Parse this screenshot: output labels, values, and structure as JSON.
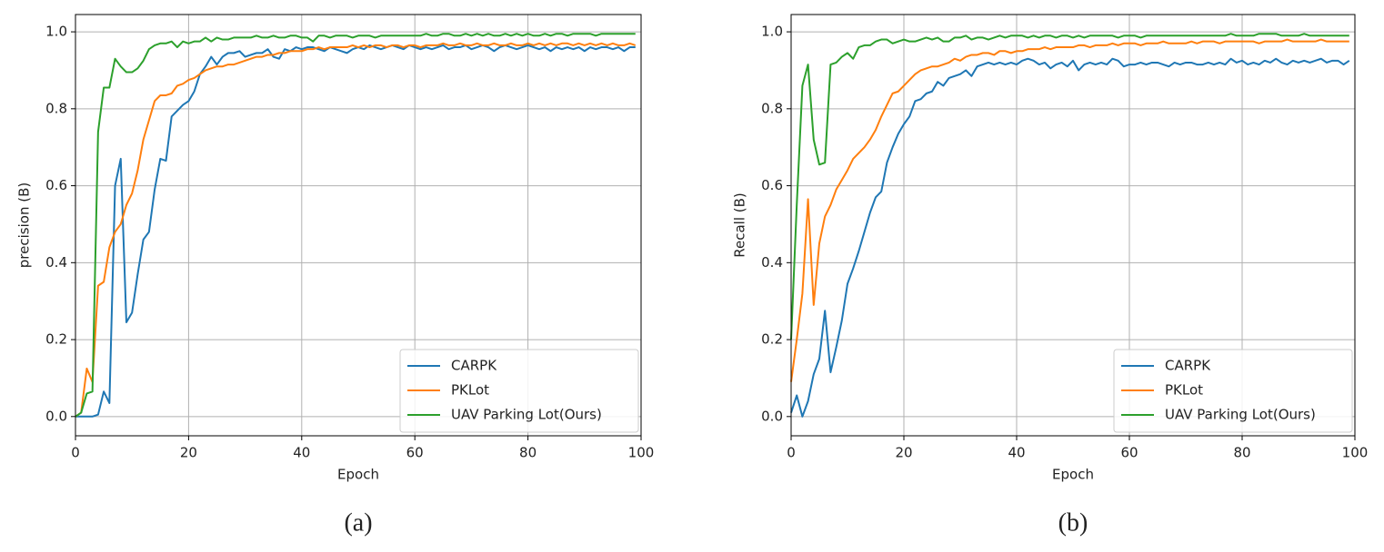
{
  "chart_data": [
    {
      "type": "line",
      "caption": "(a)",
      "x_label": "Epoch",
      "y_label": "precision (B)",
      "x": [
        0,
        1,
        2,
        3,
        4,
        5,
        6,
        7,
        8,
        9,
        10,
        11,
        12,
        13,
        14,
        15,
        16,
        17,
        18,
        19,
        20,
        21,
        22,
        23,
        24,
        25,
        26,
        27,
        28,
        29,
        30,
        31,
        32,
        33,
        34,
        35,
        36,
        37,
        38,
        39,
        40,
        41,
        42,
        43,
        44,
        45,
        46,
        47,
        48,
        49,
        50,
        51,
        52,
        53,
        54,
        55,
        56,
        57,
        58,
        59,
        60,
        61,
        62,
        63,
        64,
        65,
        66,
        67,
        68,
        69,
        70,
        71,
        72,
        73,
        74,
        75,
        76,
        77,
        78,
        79,
        80,
        81,
        82,
        83,
        84,
        85,
        86,
        87,
        88,
        89,
        90,
        91,
        92,
        93,
        94,
        95,
        96,
        97,
        98,
        99
      ],
      "xlim": [
        0,
        100
      ],
      "xticks": [
        0,
        20,
        40,
        60,
        80,
        100
      ],
      "ylim": [
        -0.05,
        1.045
      ],
      "yticks": [
        {
          "value": 0,
          "label": "0.0"
        },
        0.2,
        0.4,
        0.6,
        0.8,
        {
          "value": 1,
          "label": "1.0"
        }
      ],
      "grid": true,
      "legend": "lower right",
      "series": [
        {
          "name": "CARPK",
          "color": "#1f77b4",
          "values": [
            0,
            0,
            0,
            0,
            0.005,
            0.065,
            0.035,
            0.6,
            0.67,
            0.245,
            0.27,
            0.37,
            0.46,
            0.48,
            0.59,
            0.67,
            0.665,
            0.78,
            0.795,
            0.81,
            0.82,
            0.845,
            0.89,
            0.91,
            0.935,
            0.915,
            0.935,
            0.945,
            0.945,
            0.95,
            0.935,
            0.94,
            0.945,
            0.945,
            0.955,
            0.935,
            0.93,
            0.955,
            0.95,
            0.96,
            0.955,
            0.96,
            0.96,
            0.955,
            0.95,
            0.96,
            0.955,
            0.95,
            0.945,
            0.955,
            0.96,
            0.955,
            0.965,
            0.96,
            0.955,
            0.96,
            0.965,
            0.96,
            0.955,
            0.965,
            0.96,
            0.955,
            0.96,
            0.955,
            0.96,
            0.965,
            0.955,
            0.96,
            0.96,
            0.965,
            0.955,
            0.96,
            0.965,
            0.96,
            0.95,
            0.96,
            0.965,
            0.96,
            0.955,
            0.96,
            0.965,
            0.96,
            0.955,
            0.96,
            0.95,
            0.96,
            0.955,
            0.96,
            0.955,
            0.96,
            0.95,
            0.96,
            0.955,
            0.96,
            0.96,
            0.955,
            0.96,
            0.95,
            0.96,
            0.96
          ]
        },
        {
          "name": "PKLot",
          "color": "#ff7f0e",
          "values": [
            0,
            0.01,
            0.125,
            0.09,
            0.34,
            0.35,
            0.44,
            0.48,
            0.5,
            0.55,
            0.58,
            0.64,
            0.72,
            0.77,
            0.82,
            0.835,
            0.835,
            0.84,
            0.86,
            0.865,
            0.875,
            0.88,
            0.89,
            0.9,
            0.905,
            0.91,
            0.91,
            0.915,
            0.915,
            0.92,
            0.925,
            0.93,
            0.935,
            0.935,
            0.94,
            0.94,
            0.945,
            0.945,
            0.95,
            0.95,
            0.95,
            0.955,
            0.955,
            0.96,
            0.955,
            0.96,
            0.96,
            0.96,
            0.96,
            0.965,
            0.96,
            0.965,
            0.96,
            0.965,
            0.965,
            0.96,
            0.965,
            0.965,
            0.96,
            0.965,
            0.965,
            0.96,
            0.965,
            0.965,
            0.965,
            0.97,
            0.965,
            0.965,
            0.97,
            0.965,
            0.965,
            0.97,
            0.965,
            0.965,
            0.97,
            0.965,
            0.965,
            0.97,
            0.965,
            0.965,
            0.97,
            0.965,
            0.97,
            0.965,
            0.97,
            0.965,
            0.97,
            0.97,
            0.965,
            0.97,
            0.965,
            0.97,
            0.965,
            0.97,
            0.965,
            0.97,
            0.965,
            0.965,
            0.97,
            0.965
          ]
        },
        {
          "name": "UAV Parking Lot(Ours)",
          "color": "#2ca02c",
          "values": [
            0,
            0.01,
            0.06,
            0.065,
            0.74,
            0.855,
            0.855,
            0.93,
            0.91,
            0.895,
            0.895,
            0.905,
            0.925,
            0.955,
            0.965,
            0.97,
            0.97,
            0.975,
            0.96,
            0.975,
            0.97,
            0.975,
            0.975,
            0.985,
            0.975,
            0.985,
            0.98,
            0.98,
            0.985,
            0.985,
            0.985,
            0.985,
            0.99,
            0.985,
            0.985,
            0.99,
            0.985,
            0.985,
            0.99,
            0.99,
            0.985,
            0.985,
            0.975,
            0.99,
            0.99,
            0.985,
            0.99,
            0.99,
            0.99,
            0.985,
            0.99,
            0.99,
            0.99,
            0.985,
            0.99,
            0.99,
            0.99,
            0.99,
            0.99,
            0.99,
            0.99,
            0.99,
            0.995,
            0.99,
            0.99,
            0.995,
            0.995,
            0.99,
            0.99,
            0.995,
            0.99,
            0.995,
            0.99,
            0.995,
            0.99,
            0.99,
            0.995,
            0.99,
            0.995,
            0.99,
            0.995,
            0.99,
            0.99,
            0.995,
            0.99,
            0.995,
            0.995,
            0.99,
            0.995,
            0.995,
            0.995,
            0.995,
            0.99,
            0.995,
            0.995,
            0.995,
            0.995,
            0.995,
            0.995,
            0.995
          ]
        }
      ]
    },
    {
      "type": "line",
      "caption": "(b)",
      "x_label": "Epoch",
      "y_label": "Recall (B)",
      "x": [
        0,
        1,
        2,
        3,
        4,
        5,
        6,
        7,
        8,
        9,
        10,
        11,
        12,
        13,
        14,
        15,
        16,
        17,
        18,
        19,
        20,
        21,
        22,
        23,
        24,
        25,
        26,
        27,
        28,
        29,
        30,
        31,
        32,
        33,
        34,
        35,
        36,
        37,
        38,
        39,
        40,
        41,
        42,
        43,
        44,
        45,
        46,
        47,
        48,
        49,
        50,
        51,
        52,
        53,
        54,
        55,
        56,
        57,
        58,
        59,
        60,
        61,
        62,
        63,
        64,
        65,
        66,
        67,
        68,
        69,
        70,
        71,
        72,
        73,
        74,
        75,
        76,
        77,
        78,
        79,
        80,
        81,
        82,
        83,
        84,
        85,
        86,
        87,
        88,
        89,
        90,
        91,
        92,
        93,
        94,
        95,
        96,
        97,
        98,
        99
      ],
      "xlim": [
        0,
        100
      ],
      "xticks": [
        0,
        20,
        40,
        60,
        80,
        100
      ],
      "ylim": [
        -0.05,
        1.045
      ],
      "yticks": [
        {
          "value": 0,
          "label": "0.0"
        },
        0.2,
        0.4,
        0.6,
        0.8,
        {
          "value": 1,
          "label": "1.0"
        }
      ],
      "grid": true,
      "legend": "lower right",
      "series": [
        {
          "name": "CARPK",
          "color": "#1f77b4",
          "values": [
            0.01,
            0.055,
            0,
            0.04,
            0.11,
            0.15,
            0.275,
            0.115,
            0.18,
            0.25,
            0.345,
            0.385,
            0.43,
            0.48,
            0.53,
            0.57,
            0.585,
            0.66,
            0.7,
            0.735,
            0.76,
            0.78,
            0.82,
            0.825,
            0.84,
            0.845,
            0.87,
            0.86,
            0.88,
            0.885,
            0.89,
            0.9,
            0.885,
            0.91,
            0.915,
            0.92,
            0.915,
            0.92,
            0.915,
            0.92,
            0.915,
            0.925,
            0.93,
            0.925,
            0.915,
            0.92,
            0.905,
            0.915,
            0.92,
            0.91,
            0.925,
            0.9,
            0.915,
            0.92,
            0.915,
            0.92,
            0.915,
            0.93,
            0.925,
            0.91,
            0.915,
            0.915,
            0.92,
            0.915,
            0.92,
            0.92,
            0.915,
            0.91,
            0.92,
            0.915,
            0.92,
            0.92,
            0.915,
            0.915,
            0.92,
            0.915,
            0.92,
            0.915,
            0.93,
            0.92,
            0.925,
            0.915,
            0.92,
            0.915,
            0.925,
            0.92,
            0.93,
            0.92,
            0.915,
            0.925,
            0.92,
            0.925,
            0.92,
            0.925,
            0.93,
            0.92,
            0.925,
            0.925,
            0.915,
            0.925
          ]
        },
        {
          "name": "PKLot",
          "color": "#ff7f0e",
          "values": [
            0.09,
            0.2,
            0.32,
            0.565,
            0.29,
            0.45,
            0.52,
            0.55,
            0.59,
            0.615,
            0.64,
            0.67,
            0.685,
            0.7,
            0.72,
            0.745,
            0.78,
            0.81,
            0.84,
            0.845,
            0.86,
            0.875,
            0.89,
            0.9,
            0.905,
            0.91,
            0.91,
            0.915,
            0.92,
            0.93,
            0.925,
            0.935,
            0.94,
            0.94,
            0.945,
            0.945,
            0.94,
            0.95,
            0.95,
            0.945,
            0.95,
            0.95,
            0.955,
            0.955,
            0.955,
            0.96,
            0.955,
            0.96,
            0.96,
            0.96,
            0.96,
            0.965,
            0.965,
            0.96,
            0.965,
            0.965,
            0.965,
            0.97,
            0.965,
            0.97,
            0.97,
            0.97,
            0.965,
            0.97,
            0.97,
            0.97,
            0.975,
            0.97,
            0.97,
            0.97,
            0.97,
            0.975,
            0.97,
            0.975,
            0.975,
            0.975,
            0.97,
            0.975,
            0.975,
            0.975,
            0.975,
            0.975,
            0.975,
            0.97,
            0.975,
            0.975,
            0.975,
            0.975,
            0.98,
            0.975,
            0.975,
            0.975,
            0.975,
            0.975,
            0.98,
            0.975,
            0.975,
            0.975,
            0.975,
            0.975
          ]
        },
        {
          "name": "UAV Parking Lot(Ours)",
          "color": "#2ca02c",
          "values": [
            0.2,
            0.55,
            0.86,
            0.915,
            0.72,
            0.655,
            0.66,
            0.915,
            0.92,
            0.935,
            0.945,
            0.93,
            0.96,
            0.965,
            0.965,
            0.975,
            0.98,
            0.98,
            0.97,
            0.975,
            0.98,
            0.975,
            0.975,
            0.98,
            0.985,
            0.98,
            0.985,
            0.975,
            0.975,
            0.985,
            0.985,
            0.99,
            0.98,
            0.985,
            0.985,
            0.98,
            0.985,
            0.99,
            0.985,
            0.99,
            0.99,
            0.99,
            0.985,
            0.99,
            0.985,
            0.99,
            0.99,
            0.985,
            0.99,
            0.99,
            0.985,
            0.99,
            0.985,
            0.99,
            0.99,
            0.99,
            0.99,
            0.99,
            0.985,
            0.99,
            0.99,
            0.99,
            0.985,
            0.99,
            0.99,
            0.99,
            0.99,
            0.99,
            0.99,
            0.99,
            0.99,
            0.99,
            0.99,
            0.99,
            0.99,
            0.99,
            0.99,
            0.99,
            0.995,
            0.99,
            0.99,
            0.99,
            0.99,
            0.995,
            0.995,
            0.995,
            0.995,
            0.99,
            0.99,
            0.99,
            0.99,
            0.995,
            0.99,
            0.99,
            0.99,
            0.99,
            0.99,
            0.99,
            0.99,
            0.99
          ]
        }
      ]
    }
  ]
}
